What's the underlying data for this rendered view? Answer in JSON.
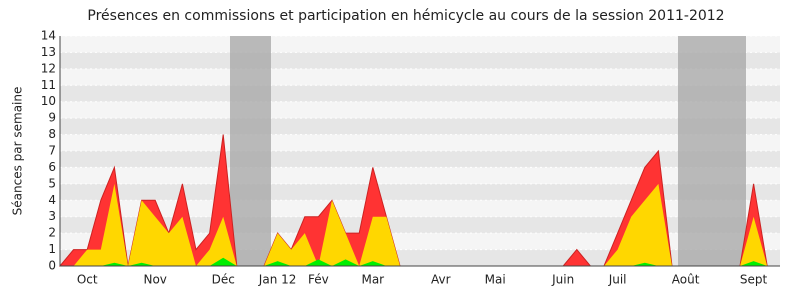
{
  "chart_data": {
    "type": "area",
    "title": "Présences en commissions et participation en hémicycle au cours de la session 2011-2012",
    "y_label": "Séances par semaine",
    "categories": [
      null,
      null,
      "Oct",
      null,
      null,
      null,
      null,
      "Nov",
      null,
      null,
      null,
      null,
      "Déc",
      null,
      null,
      null,
      "Jan 12",
      null,
      null,
      "Fév",
      null,
      null,
      null,
      "Mar",
      null,
      null,
      null,
      null,
      "Avr",
      null,
      null,
      null,
      "Mai",
      null,
      null,
      null,
      null,
      "Juin",
      null,
      null,
      null,
      "Juil",
      null,
      null,
      null,
      null,
      "Août",
      null,
      null,
      null,
      null,
      "Sept",
      null
    ],
    "series": [
      {
        "color": "#ff3333",
        "values": [
          0,
          1,
          1,
          4,
          6,
          0,
          4,
          4,
          2,
          5,
          1,
          2,
          8,
          0,
          0,
          0,
          2,
          1,
          3,
          3,
          4,
          2,
          2,
          6,
          3,
          0,
          0,
          0,
          0,
          0,
          0,
          0,
          0,
          0,
          0,
          0,
          0,
          0,
          1,
          0,
          0,
          2,
          4,
          6,
          7,
          0,
          0,
          0,
          0,
          0,
          0,
          5,
          0
        ]
      },
      {
        "color": "#ffd700",
        "values": [
          0,
          0,
          1,
          1,
          5,
          0,
          4,
          3,
          2,
          3,
          0,
          1,
          3,
          0,
          0,
          0,
          2,
          1,
          2,
          0,
          4,
          2,
          0,
          3,
          3,
          0,
          0,
          0,
          0,
          0,
          0,
          0,
          0,
          0,
          0,
          0,
          0,
          0,
          0,
          0,
          0,
          1,
          3,
          4,
          5,
          0,
          0,
          0,
          0,
          0,
          0,
          3,
          0
        ]
      },
      {
        "color": "#00ee00",
        "values": [
          0,
          0,
          0,
          0,
          0.2,
          0,
          0.2,
          0,
          0,
          0,
          0,
          0,
          0.5,
          0,
          0,
          0,
          0.3,
          0,
          0,
          0.4,
          0,
          0.4,
          0,
          0.3,
          0,
          0,
          0,
          0,
          0,
          0,
          0,
          0,
          0,
          0,
          0,
          0,
          0,
          0,
          0,
          0,
          0,
          0,
          0,
          0.2,
          0,
          0,
          0,
          0,
          0,
          0,
          0,
          0.3,
          0
        ]
      }
    ],
    "ylim": [
      0,
      14
    ],
    "yticks": [
      0,
      1,
      2,
      3,
      4,
      5,
      6,
      7,
      8,
      9,
      10,
      11,
      12,
      13,
      14
    ],
    "grid": true
  }
}
